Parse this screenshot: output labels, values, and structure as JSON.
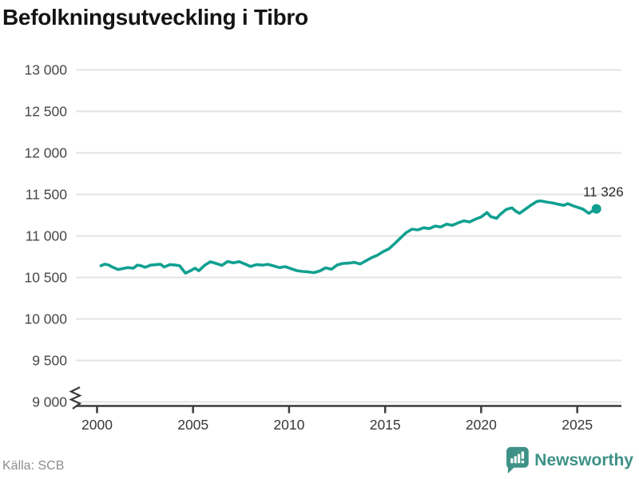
{
  "title": "Befolkningsutveckling i Tibro",
  "source_text": "Källa: SCB",
  "brand": {
    "name": "Newsworthy"
  },
  "colors": {
    "line": "#10a091",
    "marker": "#10a091",
    "grid": "#e3e3e3",
    "axis": "#3b3b3b",
    "title_text": "#141414",
    "tick_text": "#474747",
    "annotation_text": "#2b2b2b",
    "brand_teal": "#3e9186",
    "source_text": "#8c8c8c"
  },
  "chart_data": {
    "type": "line",
    "title": "Befolkningsutveckling i Tibro",
    "xlabel": "",
    "ylabel": "",
    "grid": "horizontal",
    "legend": "none",
    "x_domain": [
      1998.9,
      2027.3
    ],
    "y_domain": [
      9000,
      13000
    ],
    "y_axis_break": true,
    "x_ticks": [
      {
        "value": 2000,
        "label": "2000"
      },
      {
        "value": 2005,
        "label": "2005"
      },
      {
        "value": 2010,
        "label": "2010"
      },
      {
        "value": 2015,
        "label": "2015"
      },
      {
        "value": 2020,
        "label": "2020"
      },
      {
        "value": 2025,
        "label": "2025"
      }
    ],
    "y_ticks": [
      {
        "value": 9000,
        "label": "9 000"
      },
      {
        "value": 9500,
        "label": "9 500"
      },
      {
        "value": 10000,
        "label": "10 000"
      },
      {
        "value": 10500,
        "label": "10 500"
      },
      {
        "value": 11000,
        "label": "11 000"
      },
      {
        "value": 11500,
        "label": "11 500"
      },
      {
        "value": 12000,
        "label": "12 000"
      },
      {
        "value": 12500,
        "label": "12 500"
      },
      {
        "value": 13000,
        "label": "13 000"
      }
    ],
    "annotation": {
      "label": "11 326",
      "x": 2026.0,
      "y": 11326
    },
    "last_point": {
      "x": 2026.0,
      "y": 11326
    },
    "series": [
      {
        "name": "Befolkning i Tibro",
        "points": [
          [
            2000.2,
            10640
          ],
          [
            2000.4,
            10660
          ],
          [
            2000.6,
            10650
          ],
          [
            2000.8,
            10625
          ],
          [
            2001.1,
            10595
          ],
          [
            2001.3,
            10605
          ],
          [
            2001.6,
            10618
          ],
          [
            2001.9,
            10612
          ],
          [
            2002.1,
            10648
          ],
          [
            2002.3,
            10640
          ],
          [
            2002.5,
            10622
          ],
          [
            2002.8,
            10648
          ],
          [
            2003.1,
            10655
          ],
          [
            2003.3,
            10660
          ],
          [
            2003.5,
            10625
          ],
          [
            2003.8,
            10655
          ],
          [
            2004.1,
            10648
          ],
          [
            2004.3,
            10640
          ],
          [
            2004.6,
            10552
          ],
          [
            2004.9,
            10585
          ],
          [
            2005.1,
            10612
          ],
          [
            2005.3,
            10580
          ],
          [
            2005.6,
            10645
          ],
          [
            2005.9,
            10688
          ],
          [
            2006.2,
            10668
          ],
          [
            2006.5,
            10645
          ],
          [
            2006.8,
            10692
          ],
          [
            2007.1,
            10675
          ],
          [
            2007.4,
            10690
          ],
          [
            2007.7,
            10662
          ],
          [
            2008.0,
            10632
          ],
          [
            2008.3,
            10655
          ],
          [
            2008.6,
            10648
          ],
          [
            2008.9,
            10658
          ],
          [
            2009.2,
            10638
          ],
          [
            2009.5,
            10618
          ],
          [
            2009.8,
            10630
          ],
          [
            2010.1,
            10605
          ],
          [
            2010.4,
            10582
          ],
          [
            2010.7,
            10572
          ],
          [
            2011.0,
            10566
          ],
          [
            2011.3,
            10558
          ],
          [
            2011.6,
            10578
          ],
          [
            2011.9,
            10615
          ],
          [
            2012.2,
            10598
          ],
          [
            2012.5,
            10650
          ],
          [
            2012.8,
            10668
          ],
          [
            2013.1,
            10672
          ],
          [
            2013.4,
            10682
          ],
          [
            2013.7,
            10662
          ],
          [
            2014.0,
            10700
          ],
          [
            2014.3,
            10738
          ],
          [
            2014.6,
            10768
          ],
          [
            2014.9,
            10812
          ],
          [
            2015.2,
            10845
          ],
          [
            2015.5,
            10908
          ],
          [
            2015.8,
            10975
          ],
          [
            2016.1,
            11040
          ],
          [
            2016.4,
            11082
          ],
          [
            2016.7,
            11072
          ],
          [
            2017.0,
            11098
          ],
          [
            2017.3,
            11088
          ],
          [
            2017.6,
            11118
          ],
          [
            2017.9,
            11108
          ],
          [
            2018.2,
            11142
          ],
          [
            2018.5,
            11128
          ],
          [
            2018.8,
            11158
          ],
          [
            2019.1,
            11182
          ],
          [
            2019.4,
            11168
          ],
          [
            2019.7,
            11202
          ],
          [
            2020.0,
            11228
          ],
          [
            2020.3,
            11282
          ],
          [
            2020.5,
            11232
          ],
          [
            2020.8,
            11212
          ],
          [
            2021.0,
            11262
          ],
          [
            2021.3,
            11318
          ],
          [
            2021.6,
            11338
          ],
          [
            2021.8,
            11298
          ],
          [
            2022.0,
            11272
          ],
          [
            2022.3,
            11322
          ],
          [
            2022.6,
            11372
          ],
          [
            2022.9,
            11415
          ],
          [
            2023.1,
            11422
          ],
          [
            2023.4,
            11408
          ],
          [
            2023.7,
            11398
          ],
          [
            2024.0,
            11382
          ],
          [
            2024.3,
            11368
          ],
          [
            2024.5,
            11388
          ],
          [
            2024.8,
            11362
          ],
          [
            2025.0,
            11345
          ],
          [
            2025.3,
            11322
          ],
          [
            2025.6,
            11272
          ],
          [
            2025.8,
            11302
          ],
          [
            2026.0,
            11326
          ]
        ]
      }
    ]
  }
}
